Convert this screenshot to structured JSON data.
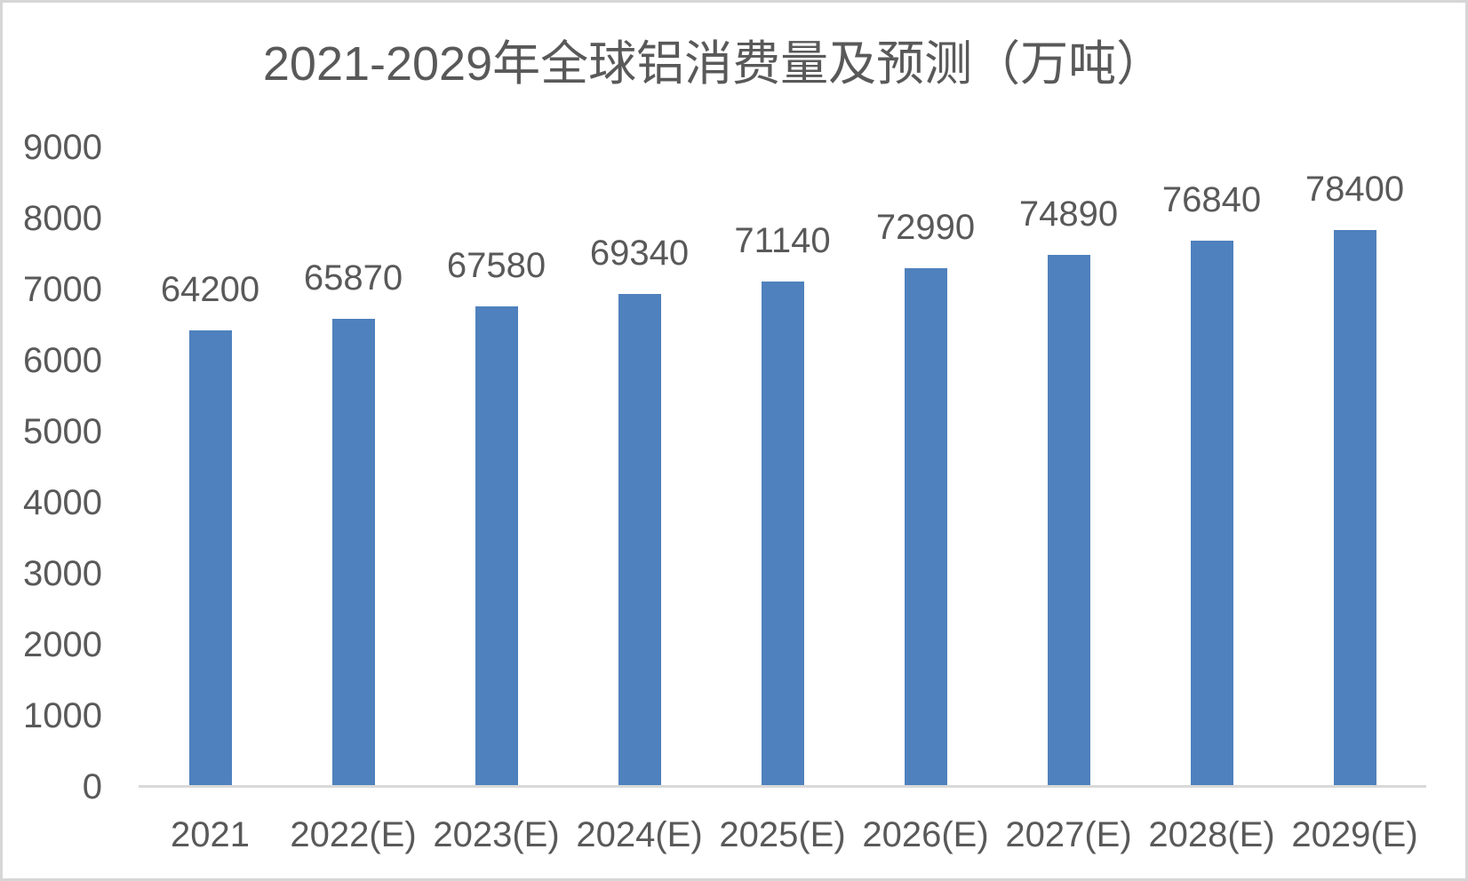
{
  "window": {
    "background_color": "#FFFFFF",
    "border_color": "#D6D6D6"
  },
  "chart_data": {
    "type": "bar",
    "title": "2021-2029年全球铝消费量及预测（万吨）",
    "categories": [
      "2021",
      "2022(E)",
      "2023(E)",
      "2024(E)",
      "2025(E)",
      "2026(E)",
      "2027(E)",
      "2028(E)",
      "2029(E)"
    ],
    "values": [
      64200,
      65870,
      67580,
      69340,
      71140,
      72990,
      74890,
      76840,
      78400
    ],
    "data_labels": [
      "64200",
      "65870",
      "67580",
      "69340",
      "71140",
      "72990",
      "74890",
      "76840",
      "78400"
    ],
    "xlabel": "",
    "ylabel": "",
    "ylim": [
      0,
      9000
    ],
    "yticks": [
      0,
      1000,
      2000,
      3000,
      4000,
      5000,
      6000,
      7000,
      8000,
      9000
    ],
    "bar_value_axis_divisor": 10,
    "grid": false,
    "legend": "none",
    "bar_color": "#4E81BD",
    "text_color": "#595959",
    "axis_line_color": "#D9D9D9"
  }
}
